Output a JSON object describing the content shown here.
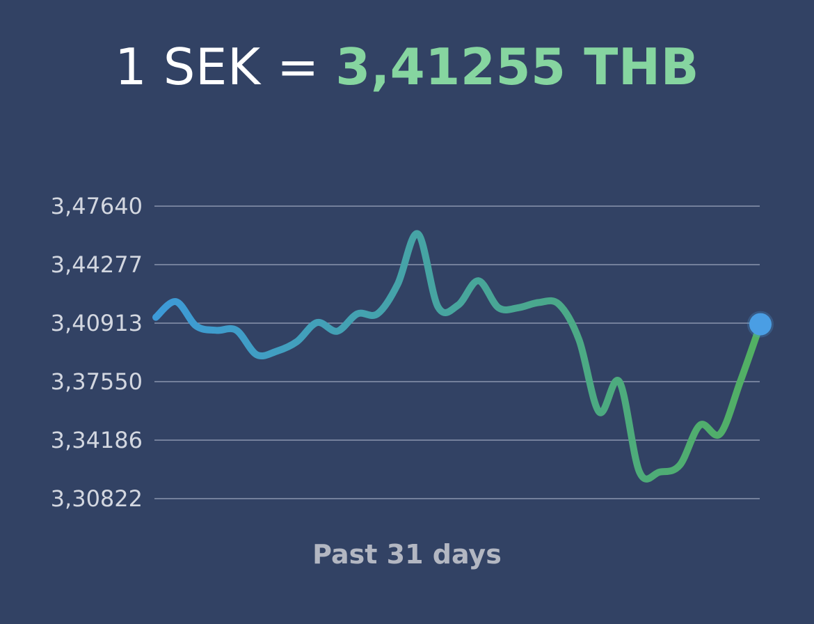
{
  "header": {
    "base": "1 SEK",
    "equals": "=",
    "rate": "3,41255 THB"
  },
  "footer": {
    "period_label": "Past 31 days"
  },
  "colors": {
    "background": "#324264",
    "accent_green": "#86d5a0",
    "line_start": "#3d9ad8",
    "line_end": "#52b062",
    "endpoint_dot": "#4a9ee4"
  },
  "chart_data": {
    "type": "line",
    "title": "",
    "xlabel": "",
    "ylabel": "",
    "ylim": [
      3.30822,
      3.4764
    ],
    "y_ticks": [
      3.4764,
      3.44277,
      3.40913,
      3.3755,
      3.34186,
      3.30822
    ],
    "y_tick_labels": [
      "3,47640",
      "3,44277",
      "3,40913",
      "3,37550",
      "3,34186",
      "3,30822"
    ],
    "grid": true,
    "x": [
      0,
      1,
      2,
      3,
      4,
      5,
      6,
      7,
      8,
      9,
      10,
      11,
      12,
      13,
      14,
      15,
      16,
      17,
      18,
      19,
      20,
      21,
      22,
      23,
      24,
      25,
      26,
      27,
      28,
      29,
      30
    ],
    "series": [
      {
        "values": [
          3.4125,
          3.4215,
          3.4075,
          3.405,
          3.405,
          3.391,
          3.393,
          3.3985,
          3.4095,
          3.4045,
          3.4145,
          3.4145,
          3.4315,
          3.4605,
          3.4185,
          3.4195,
          3.4335,
          3.418,
          3.418,
          3.421,
          3.42,
          3.3995,
          3.358,
          3.3755,
          3.3235,
          3.3235,
          3.3275,
          3.3505,
          3.3455,
          3.3755,
          3.4085
        ]
      }
    ]
  }
}
